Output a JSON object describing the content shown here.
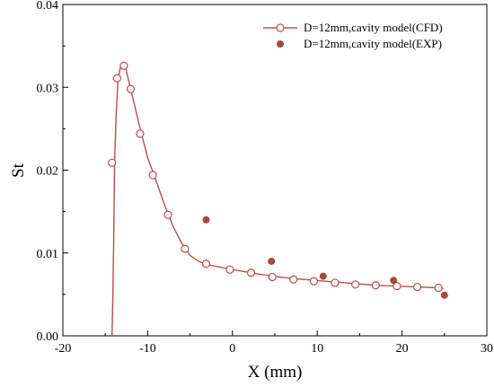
{
  "chart_data": {
    "type": "line",
    "xlabel": "X (mm)",
    "ylabel": "St",
    "xlim": [
      -20,
      30
    ],
    "ylim": [
      0,
      0.04
    ],
    "x_ticks": [
      "-20",
      "-10",
      "0",
      "10",
      "20",
      "30"
    ],
    "y_ticks": [
      "0.00",
      "0.01",
      "0.02",
      "0.03",
      "0.04"
    ],
    "legend_position": "top-right",
    "grid": false,
    "series": [
      {
        "name": "D=12mm,cavity model(CFD)",
        "kind": "line-with-open-markers",
        "color": "#b5514a",
        "curve": [
          [
            -14.2,
            0.0
          ],
          [
            -14.1,
            0.005
          ],
          [
            -14.0,
            0.012
          ],
          [
            -13.9,
            0.021
          ],
          [
            -13.7,
            0.027
          ],
          [
            -13.5,
            0.031
          ],
          [
            -13.2,
            0.0325
          ],
          [
            -13.0,
            0.033
          ],
          [
            -12.7,
            0.0328
          ],
          [
            -12.0,
            0.0298
          ],
          [
            -11.0,
            0.0255
          ],
          [
            -10.0,
            0.0215
          ],
          [
            -9.0,
            0.0187
          ],
          [
            -8.0,
            0.0158
          ],
          [
            -7.0,
            0.0132
          ],
          [
            -6.0,
            0.0112
          ],
          [
            -5.0,
            0.0097
          ],
          [
            -4.0,
            0.009
          ],
          [
            -3.0,
            0.0086
          ],
          [
            -2.0,
            0.0084
          ],
          [
            0.0,
            0.008
          ],
          [
            2.3,
            0.0076
          ],
          [
            4.7,
            0.0072
          ],
          [
            7.2,
            0.0069
          ],
          [
            9.6,
            0.0067
          ],
          [
            12.1,
            0.0065
          ],
          [
            14.5,
            0.0063
          ],
          [
            16.9,
            0.0061
          ],
          [
            19.4,
            0.006
          ],
          [
            21.8,
            0.0059
          ],
          [
            24.2,
            0.0058
          ],
          [
            24.9,
            0.0057
          ]
        ],
        "markers": [
          [
            -14.2,
            0.0209
          ],
          [
            -13.6,
            0.0311
          ],
          [
            -12.8,
            0.0326
          ],
          [
            -12.0,
            0.0298
          ],
          [
            -10.9,
            0.0244
          ],
          [
            -9.4,
            0.0194
          ],
          [
            -7.6,
            0.0146
          ],
          [
            -5.6,
            0.0105
          ],
          [
            -3.1,
            0.0087
          ],
          [
            -0.3,
            0.008
          ],
          [
            2.2,
            0.0076
          ],
          [
            4.7,
            0.0071
          ],
          [
            7.2,
            0.0068
          ],
          [
            9.6,
            0.0066
          ],
          [
            12.1,
            0.0064
          ],
          [
            14.5,
            0.0062
          ],
          [
            16.9,
            0.0061
          ],
          [
            19.4,
            0.006
          ],
          [
            21.8,
            0.0059
          ],
          [
            24.3,
            0.0058
          ]
        ]
      },
      {
        "name": "D=12mm,cavity model(EXP)",
        "kind": "scatter",
        "color": "#a44a3f",
        "points": [
          [
            -3.1,
            0.014
          ],
          [
            4.6,
            0.009
          ],
          [
            10.7,
            0.0072
          ],
          [
            19.0,
            0.0067
          ],
          [
            25.0,
            0.0049
          ]
        ]
      }
    ]
  }
}
